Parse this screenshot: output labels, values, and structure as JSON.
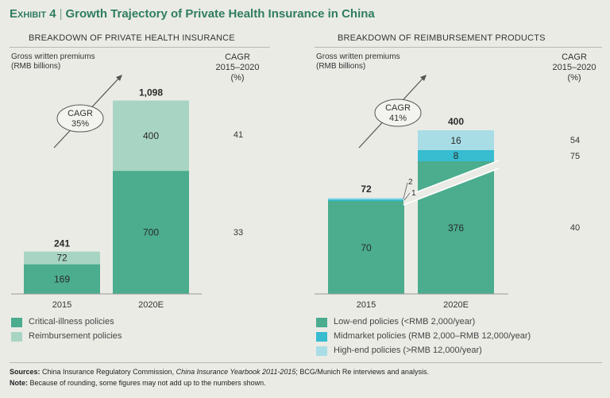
{
  "header": {
    "exhibit": "Exhibit 4",
    "sep": "|",
    "title": "Growth Trajectory of Private Health Insurance in China"
  },
  "colors": {
    "critical": "#4bac8e",
    "reimb": "#a8d5c3",
    "low": "#4bac8e",
    "mid": "#37bcd0",
    "high": "#a8dde6",
    "axis": "#9a9a9a",
    "arrow": "#555555"
  },
  "footer": {
    "sources_label": "Sources:",
    "sources_pre": " China Insurance Regulatory Commission, ",
    "sources_italic": "China Insurance Yearbook 2011-2015",
    "sources_post": "; BCG/Munich Re interviews and analysis.",
    "note_label": "Note:",
    "note_text": " Because of rounding, some figures may not add up to the numbers shown."
  },
  "chart_data": [
    {
      "type": "bar",
      "stacked": true,
      "title": "BREAKDOWN OF PRIVATE HEALTH INSURANCE",
      "ylabel": "Gross written premiums (RMB billions)",
      "ylabel_lines": [
        "Gross written premiums",
        "(RMB billions)"
      ],
      "cagr_header": [
        "CAGR",
        "2015–2020",
        "(%)"
      ],
      "categories": [
        "2015",
        "2020E"
      ],
      "totals": [
        "241",
        "1,098"
      ],
      "series": [
        {
          "name": "Critical-illness policies",
          "values": [
            169,
            700
          ],
          "cagr": "33"
        },
        {
          "name": "Reimbursement policies",
          "values": [
            72,
            400
          ],
          "cagr": "41"
        }
      ],
      "annotation": [
        "CAGR",
        "35%"
      ],
      "ylim": [
        0,
        1098
      ]
    },
    {
      "type": "bar",
      "stacked": true,
      "broken_axis": true,
      "title": "BREAKDOWN OF REIMBURSEMENT PRODUCTS",
      "ylabel": "Gross written premiums (RMB billions)",
      "ylabel_lines": [
        "Gross written premiums",
        "(RMB billions)"
      ],
      "cagr_header": [
        "CAGR",
        "2015–2020",
        "(%)"
      ],
      "categories": [
        "2015",
        "2020E"
      ],
      "totals": [
        "72",
        "400"
      ],
      "series": [
        {
          "name": "Low-end policies (<RMB 2,000/year)",
          "values": [
            70,
            376
          ],
          "cagr": "40"
        },
        {
          "name": "Midmarket policies (RMB 2,000–RMB 12,000/year)",
          "values": [
            1,
            8
          ],
          "cagr": "75"
        },
        {
          "name": "High-end policies (>RMB 12,000/year)",
          "values": [
            2,
            16
          ],
          "cagr": "54"
        }
      ],
      "segment_labels": [
        [
          "70",
          "1",
          "2"
        ],
        [
          "376",
          "8",
          "16"
        ]
      ],
      "annotation": [
        "CAGR",
        "41%"
      ]
    }
  ]
}
